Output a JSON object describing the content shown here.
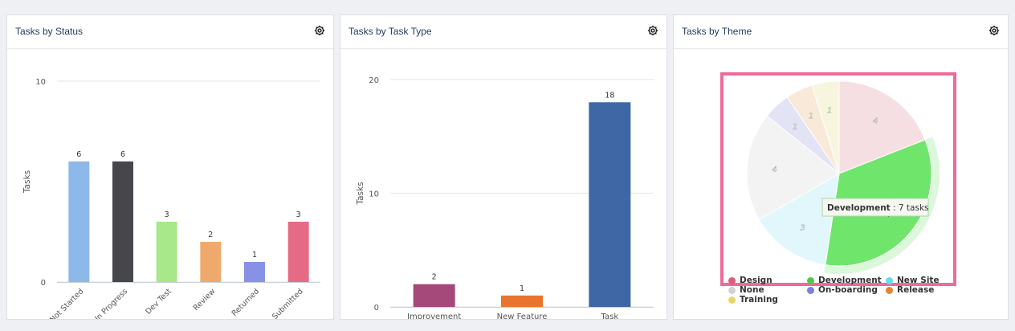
{
  "panels": {
    "status": {
      "title": "Tasks by Status"
    },
    "type": {
      "title": "Tasks by Task Type"
    },
    "theme": {
      "title": "Tasks by Theme"
    }
  },
  "icons": {
    "settings": "gear-icon"
  },
  "colors": {
    "highlight_border": "#ee6a9b"
  },
  "chart_data": [
    {
      "type": "bar",
      "title": "Tasks by Status",
      "ylabel": "Tasks",
      "xlabel": "",
      "ylim": [
        0,
        10
      ],
      "yticks": [
        0,
        10
      ],
      "grid": true,
      "categories": [
        "Not Started",
        "In Progress",
        "Dev Test",
        "Review",
        "Returned",
        "Submitted"
      ],
      "values": [
        6,
        6,
        3,
        2,
        1,
        3
      ],
      "colors": [
        "#8db8ea",
        "#47474b",
        "#a8e78a",
        "#efa96c",
        "#8791e6",
        "#e56b84"
      ],
      "data_labels": true,
      "x_label_rotation": -45
    },
    {
      "type": "bar",
      "title": "Tasks by Task Type",
      "ylabel": "Tasks",
      "xlabel": "",
      "ylim": [
        0,
        20
      ],
      "yticks": [
        0,
        10,
        20
      ],
      "grid": true,
      "categories": [
        "Improvement",
        "New Feature",
        "Task"
      ],
      "values": [
        2,
        1,
        18
      ],
      "colors": [
        "#a4497a",
        "#e8742e",
        "#3f67a5"
      ],
      "data_labels": true
    },
    {
      "type": "pie",
      "title": "Tasks by Theme",
      "slices": [
        {
          "name": "Design",
          "value": 4,
          "color": "#f6dfe3"
        },
        {
          "name": "Development",
          "value": 7,
          "color": "#70e56c"
        },
        {
          "name": "New Site",
          "value": 3,
          "color": "#e1f7fb"
        },
        {
          "name": "None",
          "value": 4,
          "color": "#f3f3f3"
        },
        {
          "name": "On-boarding",
          "value": 1,
          "color": "#e3e3f6"
        },
        {
          "name": "Release",
          "value": 1,
          "color": "#f9e9d9"
        },
        {
          "name": "Training",
          "value": 1,
          "color": "#f8f5df"
        }
      ],
      "legend": {
        "placement": "bottom",
        "items": [
          {
            "name": "Design",
            "color": "#e05c7b"
          },
          {
            "name": "Development",
            "color": "#4fc94b"
          },
          {
            "name": "New Site",
            "color": "#5fe0ee"
          },
          {
            "name": "None",
            "color": "#d1d1d1"
          },
          {
            "name": "On-boarding",
            "color": "#7b80e3"
          },
          {
            "name": "Release",
            "color": "#e8812e"
          },
          {
            "name": "Training",
            "color": "#e9d567"
          }
        ]
      },
      "hovered_slice": "Development",
      "tooltip": {
        "name": "Development",
        "text": " : 7 tasks"
      }
    }
  ]
}
